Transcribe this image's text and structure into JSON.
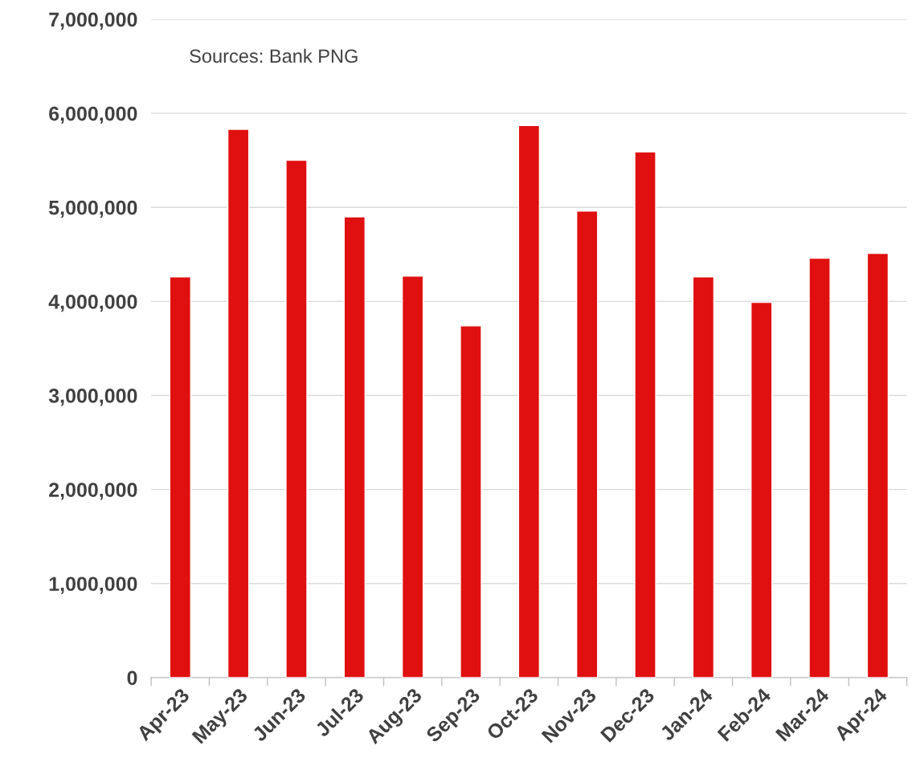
{
  "chart_data": {
    "type": "bar",
    "categories": [
      "Apr-23",
      "May-23",
      "Jun-23",
      "Jul-23",
      "Aug-23",
      "Sep-23",
      "Oct-23",
      "Nov-23",
      "Dec-23",
      "Jan-24",
      "Feb-24",
      "Mar-24",
      "Apr-24"
    ],
    "values": [
      4260000,
      5830000,
      5500000,
      4900000,
      4270000,
      3740000,
      5870000,
      4960000,
      5590000,
      4260000,
      3990000,
      4460000,
      4510000
    ],
    "color": "#e01010",
    "ylim": [
      0,
      7000000
    ],
    "yticks": [
      {
        "value": 0,
        "label": "0"
      },
      {
        "value": 1000000,
        "label": "1,000,000"
      },
      {
        "value": 2000000,
        "label": "2,000,000"
      },
      {
        "value": 3000000,
        "label": "3,000,000"
      },
      {
        "value": 4000000,
        "label": "4,000,000"
      },
      {
        "value": 5000000,
        "label": "5,000,000"
      },
      {
        "value": 6000000,
        "label": "6,000,000"
      },
      {
        "value": 7000000,
        "label": "7,000,000"
      }
    ],
    "grid": "y",
    "annotations": [
      "Sources: Bank PNG"
    ]
  }
}
